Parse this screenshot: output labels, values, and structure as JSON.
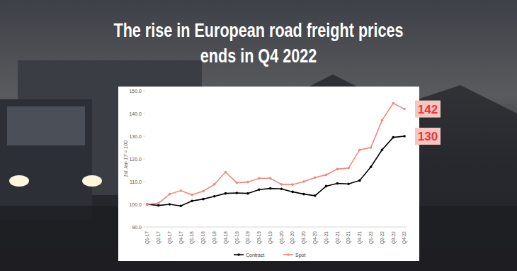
{
  "chart_data": {
    "type": "line",
    "title": [
      "The rise in European road freight prices",
      "ends in Q4 2022"
    ],
    "y_label": "1st Jan 17 = 100",
    "categories": [
      "Q1-17",
      "Q2-17",
      "Q3-17",
      "Q4-17",
      "Q1-18",
      "Q2-18",
      "Q3-18",
      "Q4-18",
      "Q1-19",
      "Q2-19",
      "Q3-19",
      "Q4-19",
      "Q1-20",
      "Q2-20",
      "Q3-20",
      "Q4-20",
      "Q1-21",
      "Q2-21",
      "Q3-21",
      "Q4-21",
      "Q1-22",
      "Q2-22",
      "Q3-22",
      "Q4-22"
    ],
    "series": [
      {
        "name": "Contract",
        "color": "#000000",
        "marker": "circle",
        "values": [
          100,
          99.5,
          100,
          99.3,
          101.5,
          102.3,
          103.5,
          104.8,
          105,
          104.8,
          106.5,
          107,
          106.8,
          105.5,
          104.5,
          103.8,
          108,
          109.2,
          109,
          110.5,
          116.5,
          124,
          129.5,
          130
        ]
      },
      {
        "name": "Spot",
        "color": "#f4877e",
        "marker": "circle",
        "values": [
          100,
          100.5,
          104.5,
          106,
          104.2,
          105.8,
          108.8,
          114.2,
          109.5,
          109.8,
          111.5,
          111.5,
          108.8,
          108.7,
          110,
          111.8,
          113,
          115.5,
          116,
          124,
          125,
          137,
          144.5,
          142
        ]
      }
    ],
    "annotations": [
      {
        "text": "142",
        "value": 142
      },
      {
        "text": "130",
        "value": 130
      }
    ],
    "ylim": [
      90,
      150
    ],
    "yticks": [
      {
        "value": 90,
        "label": "90.0"
      },
      {
        "value": 100,
        "label": "100.0"
      },
      {
        "value": 110,
        "label": "110.0"
      },
      {
        "value": 120,
        "label": "120.0"
      },
      {
        "value": 130,
        "label": "130.0"
      },
      {
        "value": 140,
        "label": "140.0"
      },
      {
        "value": 150,
        "label": "150.0"
      }
    ],
    "grid": false,
    "legend": "bottom"
  }
}
